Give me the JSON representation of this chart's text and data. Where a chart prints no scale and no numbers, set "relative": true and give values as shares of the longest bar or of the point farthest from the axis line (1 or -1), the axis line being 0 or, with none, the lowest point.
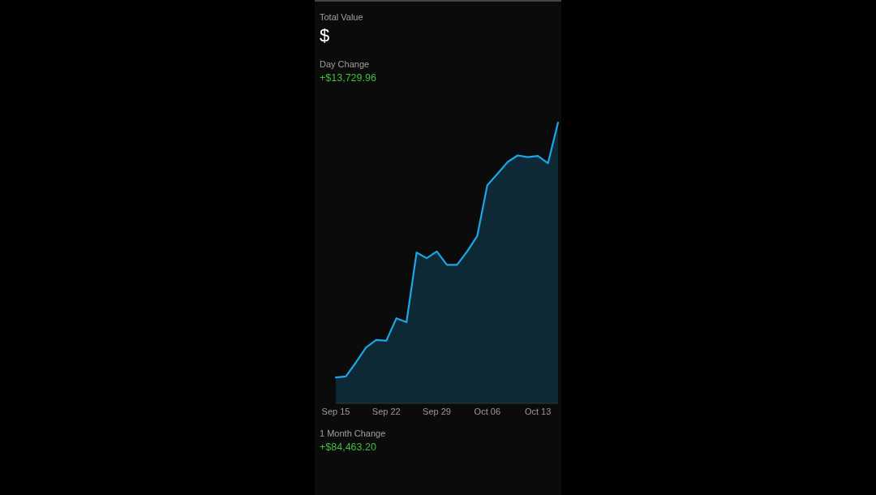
{
  "chart_data": {
    "type": "area",
    "relative": true,
    "annotations": [
      "Total Value",
      "$",
      "Day Change",
      "+$13,729.96",
      "1 Month Change",
      "+$84,463.20"
    ],
    "categories": [
      "Sep 15",
      null,
      null,
      null,
      null,
      "Sep 22",
      null,
      null,
      null,
      null,
      "Sep 29",
      null,
      null,
      null,
      null,
      "Oct 06",
      null,
      null,
      null,
      null,
      "Oct 13",
      null,
      null
    ],
    "series": [
      {
        "color": "#1aa7e8",
        "values": [
          0.092,
          0.096,
          0.146,
          0.199,
          0.226,
          0.223,
          0.303,
          0.289,
          0.537,
          0.517,
          0.541,
          0.493,
          0.493,
          0.541,
          0.596,
          0.777,
          0.817,
          0.859,
          0.883,
          0.877,
          0.881,
          0.855,
          1
        ]
      }
    ]
  }
}
